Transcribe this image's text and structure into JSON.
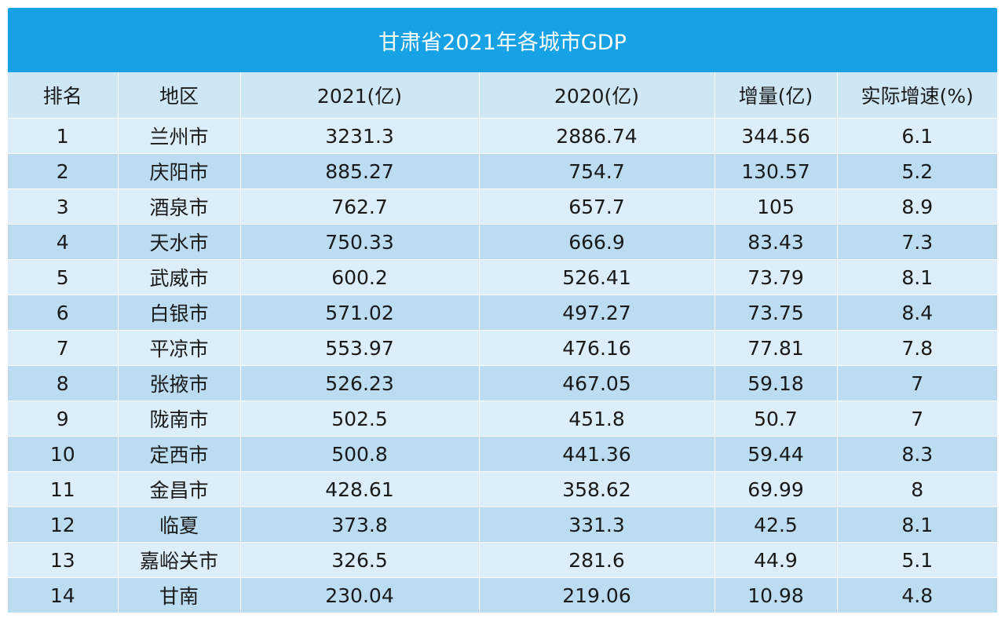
{
  "title": "甘肃省2021年各城市GDP",
  "colors": {
    "header_bar": "#18a2e6",
    "column_header_bg": "#cfe6f5",
    "row_light": "#dceef9",
    "row_dark": "#bcdcf2"
  },
  "chart_data": {
    "type": "table",
    "title": "甘肃省2021年各城市GDP",
    "columns": [
      "排名",
      "地区",
      "2021(亿)",
      "2020(亿)",
      "增量(亿)",
      "实际增速(%)"
    ],
    "rows": [
      [
        "1",
        "兰州市",
        "3231.3",
        "2886.74",
        "344.56",
        "6.1"
      ],
      [
        "2",
        "庆阳市",
        "885.27",
        "754.7",
        "130.57",
        "5.2"
      ],
      [
        "3",
        "酒泉市",
        "762.7",
        "657.7",
        "105",
        "8.9"
      ],
      [
        "4",
        "天水市",
        "750.33",
        "666.9",
        "83.43",
        "7.3"
      ],
      [
        "5",
        "武威市",
        "600.2",
        "526.41",
        "73.79",
        "8.1"
      ],
      [
        "6",
        "白银市",
        "571.02",
        "497.27",
        "73.75",
        "8.4"
      ],
      [
        "7",
        "平凉市",
        "553.97",
        "476.16",
        "77.81",
        "7.8"
      ],
      [
        "8",
        "张掖市",
        "526.23",
        "467.05",
        "59.18",
        "7"
      ],
      [
        "9",
        "陇南市",
        "502.5",
        "451.8",
        "50.7",
        "7"
      ],
      [
        "10",
        "定西市",
        "500.8",
        "441.36",
        "59.44",
        "8.3"
      ],
      [
        "11",
        "金昌市",
        "428.61",
        "358.62",
        "69.99",
        "8"
      ],
      [
        "12",
        "临夏",
        "373.8",
        "331.3",
        "42.5",
        "8.1"
      ],
      [
        "13",
        "嘉峪关市",
        "326.5",
        "281.6",
        "44.9",
        "5.1"
      ],
      [
        "14",
        "甘南",
        "230.04",
        "219.06",
        "10.98",
        "4.8"
      ]
    ]
  }
}
